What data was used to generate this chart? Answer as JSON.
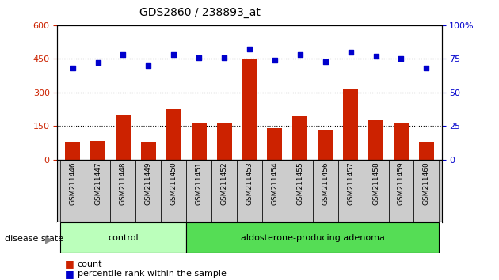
{
  "title": "GDS2860 / 238893_at",
  "samples": [
    "GSM211446",
    "GSM211447",
    "GSM211448",
    "GSM211449",
    "GSM211450",
    "GSM211451",
    "GSM211452",
    "GSM211453",
    "GSM211454",
    "GSM211455",
    "GSM211456",
    "GSM211457",
    "GSM211458",
    "GSM211459",
    "GSM211460"
  ],
  "counts": [
    82,
    85,
    200,
    82,
    225,
    165,
    165,
    450,
    140,
    195,
    135,
    315,
    175,
    165,
    80
  ],
  "percentiles": [
    68,
    72,
    78,
    70,
    78,
    76,
    76,
    82,
    74,
    78,
    73,
    80,
    77,
    75,
    68
  ],
  "groups": [
    {
      "label": "control",
      "start": 0,
      "end": 5,
      "color": "#bbffbb"
    },
    {
      "label": "aldosterone-producing adenoma",
      "start": 5,
      "end": 15,
      "color": "#55dd55"
    }
  ],
  "left_ylim": [
    0,
    600
  ],
  "left_yticks": [
    0,
    150,
    300,
    450,
    600
  ],
  "right_ylim": [
    0,
    100
  ],
  "right_yticks": [
    0,
    25,
    50,
    75,
    100
  ],
  "bar_color": "#cc2200",
  "dot_color": "#0000cc",
  "xticklabel_bg": "#cccccc",
  "legend_count_label": "count",
  "legend_percentile_label": "percentile rank within the sample",
  "disease_state_label": "disease state"
}
